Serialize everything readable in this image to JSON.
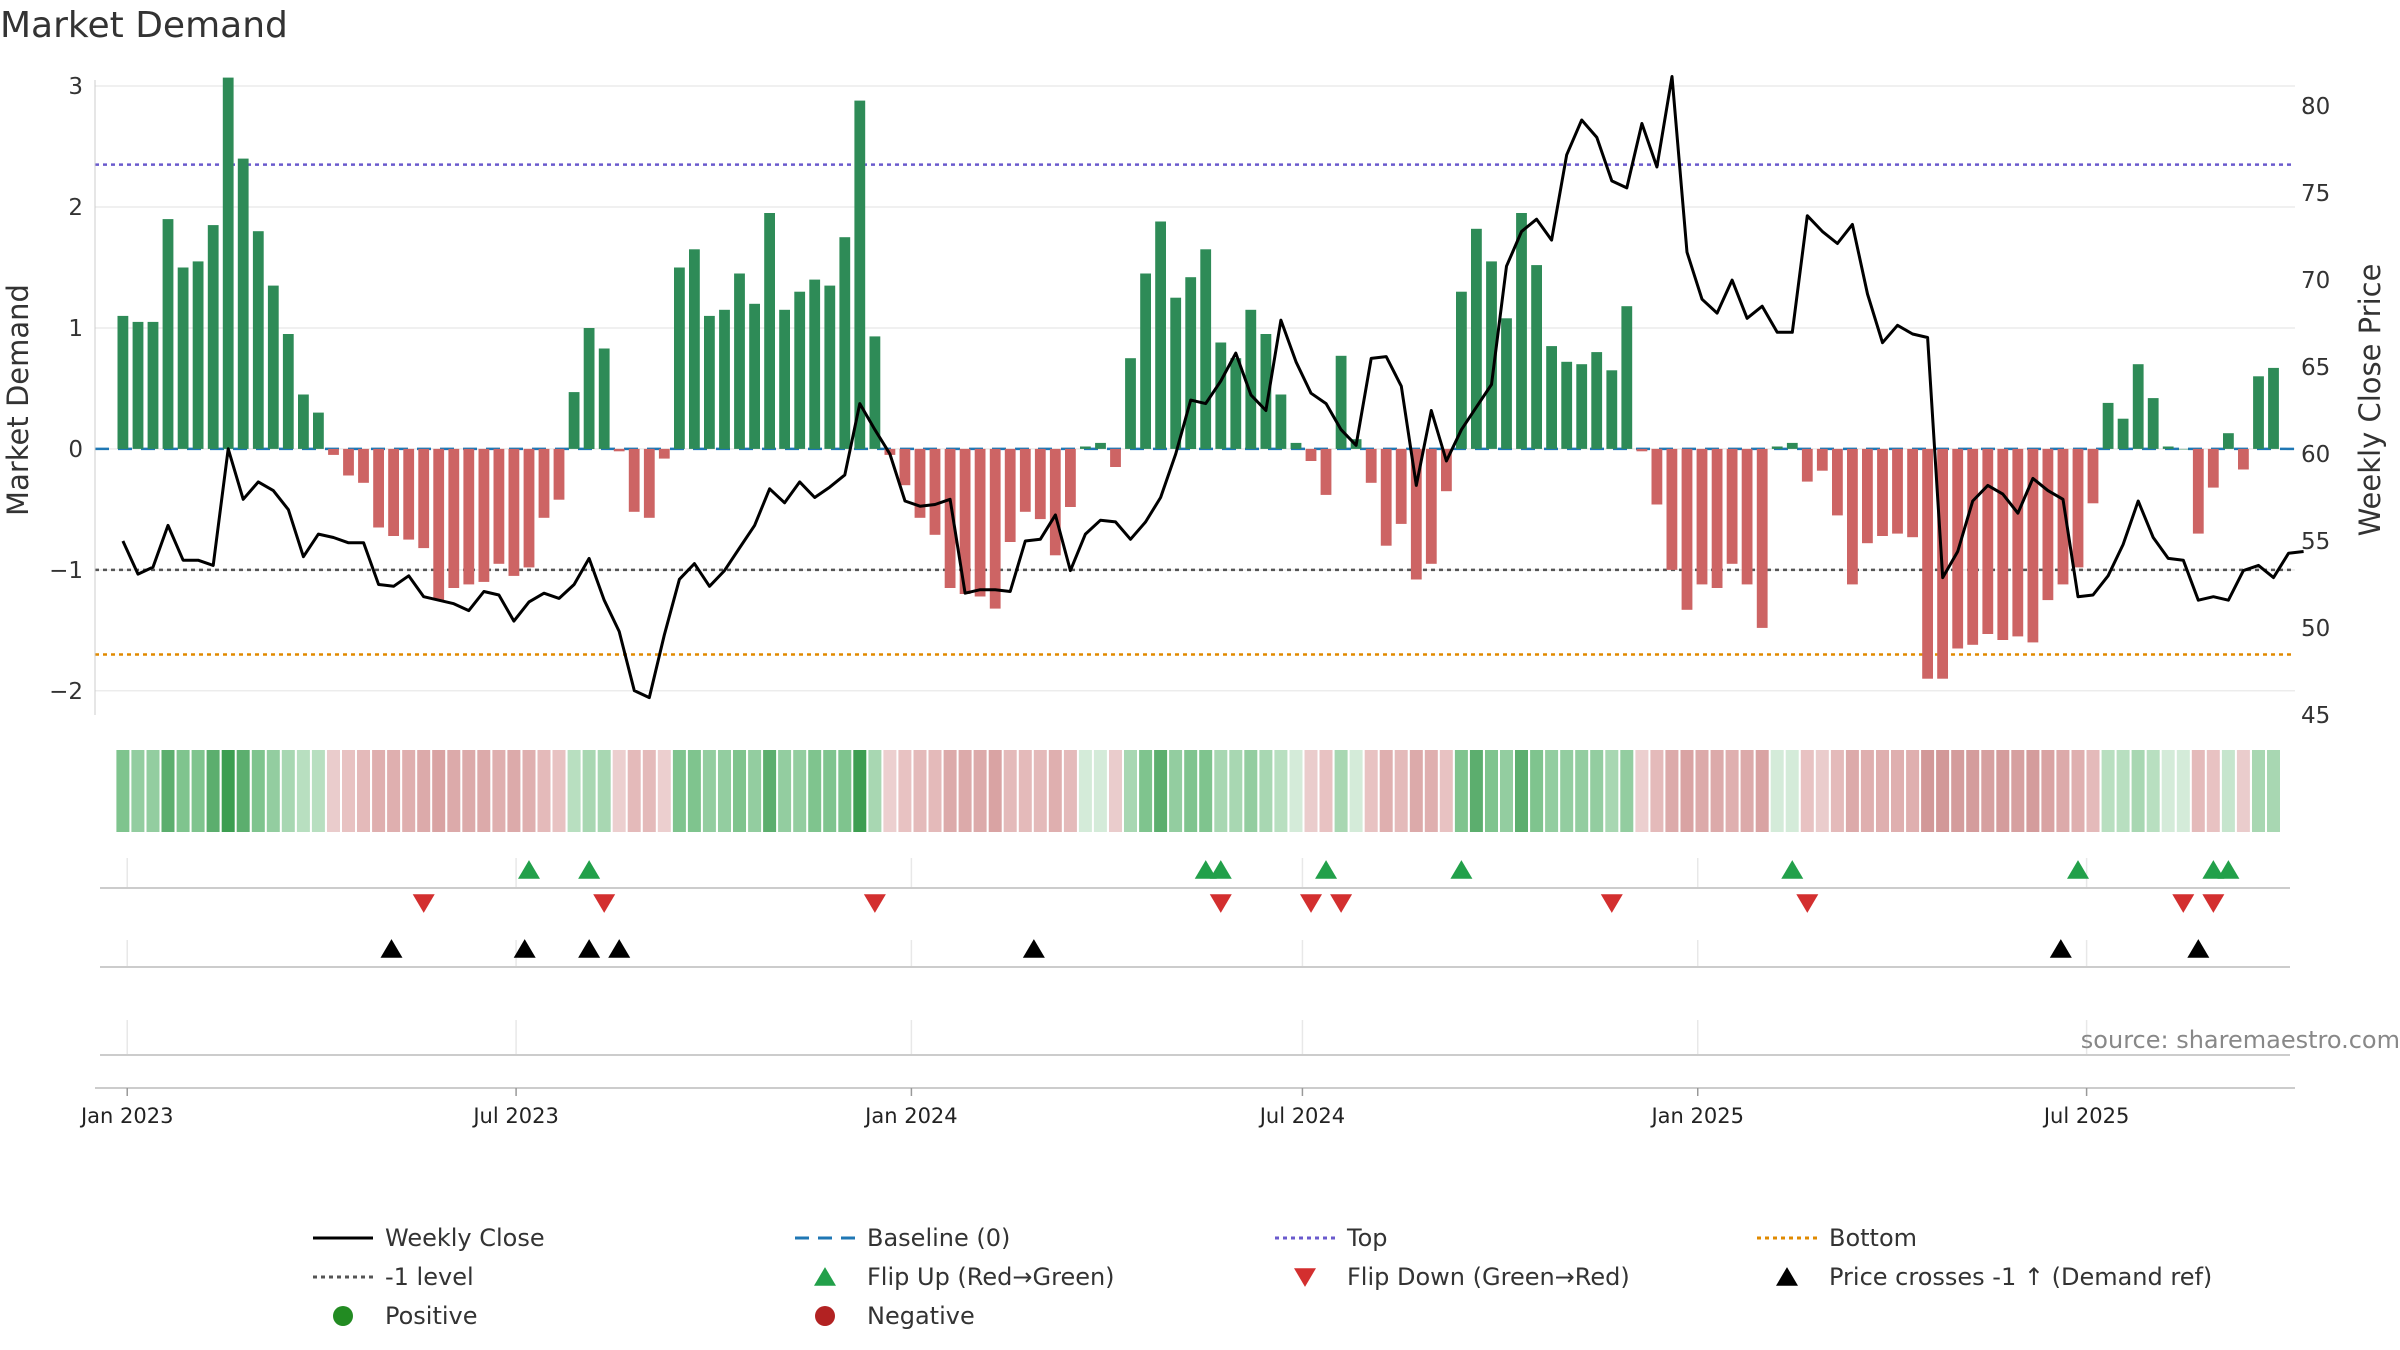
{
  "chart_data": {
    "type": "bar",
    "title": "Market Demand",
    "ylabel": "Market Demand",
    "ylabel_right": "Weekly Close Price",
    "ylim": [
      -2.2,
      3.05
    ],
    "ylim_right": [
      45,
      81.5
    ],
    "yticks": [
      -2,
      -1,
      0,
      1,
      2,
      3
    ],
    "yticks_right": [
      45,
      50,
      55,
      60,
      65,
      70,
      75,
      80
    ],
    "x_start": "2022-12-30",
    "x_step_days": 7,
    "x_ticks": [
      {
        "label": "Jan 2023",
        "date": "2023-01-01"
      },
      {
        "label": "Jul 2023",
        "date": "2023-07-01"
      },
      {
        "label": "Jan 2024",
        "date": "2024-01-01"
      },
      {
        "label": "Jul 2024",
        "date": "2024-07-01"
      },
      {
        "label": "Jan 2025",
        "date": "2025-01-01"
      },
      {
        "label": "Jul 2025",
        "date": "2025-07-01"
      }
    ],
    "x_range": [
      "2022-12-17",
      "2025-10-06"
    ],
    "reference_lines": {
      "top": 2.35,
      "minus_one": -1,
      "bottom": -1.7,
      "baseline": 0
    },
    "series": [
      {
        "name": "Market Demand",
        "values": [
          1.1,
          1.05,
          1.05,
          1.9,
          1.5,
          1.55,
          1.85,
          3.07,
          2.4,
          1.8,
          1.35,
          0.95,
          0.45,
          0.3,
          -0.05,
          -0.22,
          -0.28,
          -0.65,
          -0.72,
          -0.75,
          -0.82,
          -1.25,
          -1.15,
          -1.12,
          -1.1,
          -0.95,
          -1.05,
          -0.98,
          -0.57,
          -0.42,
          0.47,
          1.0,
          0.83,
          -0.02,
          -0.52,
          -0.57,
          -0.08,
          1.5,
          1.65,
          1.1,
          1.15,
          1.45,
          1.2,
          1.95,
          1.15,
          1.3,
          1.4,
          1.35,
          1.75,
          2.88,
          0.93,
          -0.05,
          -0.3,
          -0.57,
          -0.71,
          -1.15,
          -1.2,
          -1.22,
          -1.32,
          -0.77,
          -0.52,
          -0.58,
          -0.88,
          -0.48,
          0.02,
          0.05,
          -0.15,
          0.75,
          1.45,
          1.88,
          1.25,
          1.42,
          1.65,
          0.88,
          0.75,
          1.15,
          0.95,
          0.45,
          0.05,
          -0.1,
          -0.38,
          0.77,
          0.08,
          -0.28,
          -0.8,
          -0.62,
          -1.08,
          -0.95,
          -0.35,
          1.3,
          1.82,
          1.55,
          1.08,
          1.95,
          1.52,
          0.85,
          0.72,
          0.7,
          0.8,
          0.65,
          1.18,
          -0.02,
          -0.46,
          -1.0,
          -1.33,
          -1.12,
          -1.15,
          -0.95,
          -1.12,
          -1.48,
          0.02,
          0.05,
          -0.27,
          -0.18,
          -0.55,
          -1.12,
          -0.78,
          -0.72,
          -0.7,
          -0.73,
          -1.9,
          -1.9,
          -1.65,
          -1.62,
          -1.53,
          -1.58,
          -1.55,
          -1.6,
          -1.25,
          -1.12,
          -0.98,
          -0.45,
          0.38,
          0.25,
          0.7,
          0.42,
          0.02,
          0.0,
          -0.7,
          -0.32,
          0.13,
          -0.17,
          0.6,
          0.67
        ]
      },
      {
        "name": "Weekly Close",
        "axis": "right",
        "values": [
          55,
          53.1,
          53.5,
          55.9,
          53.9,
          53.9,
          53.6,
          60.3,
          57.4,
          58.4,
          57.9,
          56.8,
          54.1,
          55.4,
          55.2,
          54.9,
          54.9,
          52.5,
          52.4,
          53,
          51.8,
          51.6,
          51.4,
          51,
          52.1,
          51.9,
          50.4,
          51.5,
          52,
          51.7,
          52.5,
          54,
          51.6,
          49.8,
          46.4,
          46,
          49.6,
          52.8,
          53.7,
          52.4,
          53.3,
          54.6,
          55.9,
          58,
          57.2,
          58.4,
          57.5,
          58.1,
          58.8,
          62.9,
          61.4,
          60,
          57.3,
          57,
          57.1,
          57.4,
          52,
          52.2,
          52.2,
          52.1,
          55,
          55.1,
          56.5,
          53.3,
          55.4,
          56.2,
          56.1,
          55.1,
          56.1,
          57.5,
          60,
          63.1,
          62.9,
          64.2,
          65.8,
          63.4,
          62.5,
          67.7,
          65.3,
          63.5,
          62.9,
          61.4,
          60.5,
          65.5,
          65.6,
          63.9,
          58.2,
          62.5,
          59.6,
          61.4,
          62.7,
          64,
          70.8,
          72.8,
          73.5,
          72.3,
          77.2,
          79.2,
          78.2,
          75.7,
          75.3,
          79,
          76.5,
          81.7,
          71.6,
          68.9,
          68.1,
          70,
          67.8,
          68.5,
          67,
          67,
          73.7,
          72.8,
          72.1,
          73.2,
          69.2,
          66.4,
          67.4,
          66.9,
          66.7,
          52.9,
          54.4,
          57.3,
          58.2,
          57.7,
          56.6,
          58.6,
          57.9,
          57.4,
          51.8,
          51.9,
          53,
          54.8,
          57.3,
          55.2,
          54,
          53.9,
          51.6,
          51.8,
          51.6,
          53.3,
          53.6,
          52.9,
          54.3,
          54.4
        ]
      }
    ],
    "strip_colors": [
      "#7fc48e",
      "#93cda0",
      "#93cda0",
      "#5cae6e",
      "#7fc48e",
      "#7fc48e",
      "#5cae6e",
      "#3d9e51",
      "#5cae6e",
      "#7fc48e",
      "#93cda0",
      "#a8d7b2",
      "#b8dfc0",
      "#b8dfc0",
      "#eacccc",
      "#e8c2c2",
      "#e4baba",
      "#dfafaf",
      "#dfafaf",
      "#dfafaf",
      "#dcaaaa",
      "#d9a3a3",
      "#dcaaaa",
      "#dcaaaa",
      "#dcaaaa",
      "#dfafaf",
      "#dcaaaa",
      "#dfafaf",
      "#e4baba",
      "#e8c2c2",
      "#b8dfc0",
      "#a8d7b2",
      "#a8d7b2",
      "#eccfcf",
      "#e4baba",
      "#e4baba",
      "#eccfcf",
      "#7fc48e",
      "#7fc48e",
      "#93cda0",
      "#93cda0",
      "#7fc48e",
      "#93cda0",
      "#5cae6e",
      "#93cda0",
      "#93cda0",
      "#7fc48e",
      "#7fc48e",
      "#7fc48e",
      "#3d9e51",
      "#a8d7b2",
      "#eccfcf",
      "#e8c2c2",
      "#e4baba",
      "#e4baba",
      "#dcaaaa",
      "#dcaaaa",
      "#dcaaaa",
      "#d9a3a3",
      "#e4baba",
      "#e4baba",
      "#e4baba",
      "#dfafaf",
      "#e4baba",
      "#d4ebd9",
      "#d4ebd9",
      "#eacccc",
      "#a8d7b2",
      "#7fc48e",
      "#5cae6e",
      "#93cda0",
      "#7fc48e",
      "#7fc48e",
      "#a8d7b2",
      "#a8d7b2",
      "#93cda0",
      "#a8d7b2",
      "#b8dfc0",
      "#d4ebd9",
      "#eacccc",
      "#e8c2c2",
      "#a8d7b2",
      "#d4ebd9",
      "#e8c2c2",
      "#dfafaf",
      "#e4baba",
      "#dcaaaa",
      "#dfafaf",
      "#e8c2c2",
      "#7fc48e",
      "#5cae6e",
      "#7fc48e",
      "#93cda0",
      "#5cae6e",
      "#7fc48e",
      "#93cda0",
      "#93cda0",
      "#93cda0",
      "#93cda0",
      "#a8d7b2",
      "#93cda0",
      "#eccfcf",
      "#e4baba",
      "#dcaaaa",
      "#d9a3a3",
      "#dcaaaa",
      "#dcaaaa",
      "#dfafaf",
      "#dcaaaa",
      "#d9a3a3",
      "#d4ebd9",
      "#d4ebd9",
      "#e8c2c2",
      "#eacccc",
      "#e4baba",
      "#dcaaaa",
      "#dfafaf",
      "#dfafaf",
      "#dfafaf",
      "#dfafaf",
      "#d29898",
      "#d29898",
      "#d49c9c",
      "#d49c9c",
      "#d6a0a0",
      "#d49c9c",
      "#d6a0a0",
      "#d49c9c",
      "#d9a3a3",
      "#dcaaaa",
      "#dfafaf",
      "#e4baba",
      "#b8dfc0",
      "#b8dfc0",
      "#a8d7b2",
      "#b8dfc0",
      "#d4ebd9",
      "#d4ebd9",
      "#e4baba",
      "#e8c2c2",
      "#c6e5cd",
      "#eacccc",
      "#a8d7b2",
      "#a8d7b2"
    ],
    "flip_up": [
      "2023-07-07",
      "2023-08-04",
      "2024-05-17",
      "2024-05-24",
      "2024-07-12",
      "2024-09-13",
      "2025-02-14",
      "2025-06-27",
      "2025-08-29",
      "2025-09-05"
    ],
    "flip_down": [
      "2023-05-19",
      "2023-08-11",
      "2023-12-15",
      "2024-05-24",
      "2024-07-05",
      "2024-07-19",
      "2024-11-22",
      "2025-02-21",
      "2025-08-15",
      "2025-08-29"
    ],
    "price_crosses": [
      "2023-05-04",
      "2023-07-05",
      "2023-08-04",
      "2023-08-18",
      "2024-02-27",
      "2025-06-19",
      "2025-08-22"
    ],
    "legend": [
      {
        "label": "Weekly Close",
        "kind": "line-solid",
        "color": "#000000"
      },
      {
        "label": "Baseline (0)",
        "kind": "line-dash",
        "color": "#1f77b4"
      },
      {
        "label": "Top",
        "kind": "line-dot",
        "color": "#6a5acd"
      },
      {
        "label": "Bottom",
        "kind": "line-dot",
        "color": "#e08a00"
      },
      {
        "label": "-1 level",
        "kind": "line-dot",
        "color": "#555555"
      },
      {
        "label": "Flip Up (Red→Green)",
        "kind": "tri-up",
        "color": "#22a04a"
      },
      {
        "label": "Flip Down (Green→Red)",
        "kind": "tri-down",
        "color": "#d32f2f"
      },
      {
        "label": "Price crosses -1 ↑ (Demand ref)",
        "kind": "tri-up",
        "color": "#000000"
      },
      {
        "label": "Positive",
        "kind": "dot",
        "color": "#228B22"
      },
      {
        "label": "Negative",
        "kind": "dot",
        "color": "#b22222"
      }
    ],
    "source": "source: sharemaestro.com",
    "colors": {
      "positive": "#2e8b57",
      "negative": "#cd6464",
      "line": "#000000"
    }
  }
}
